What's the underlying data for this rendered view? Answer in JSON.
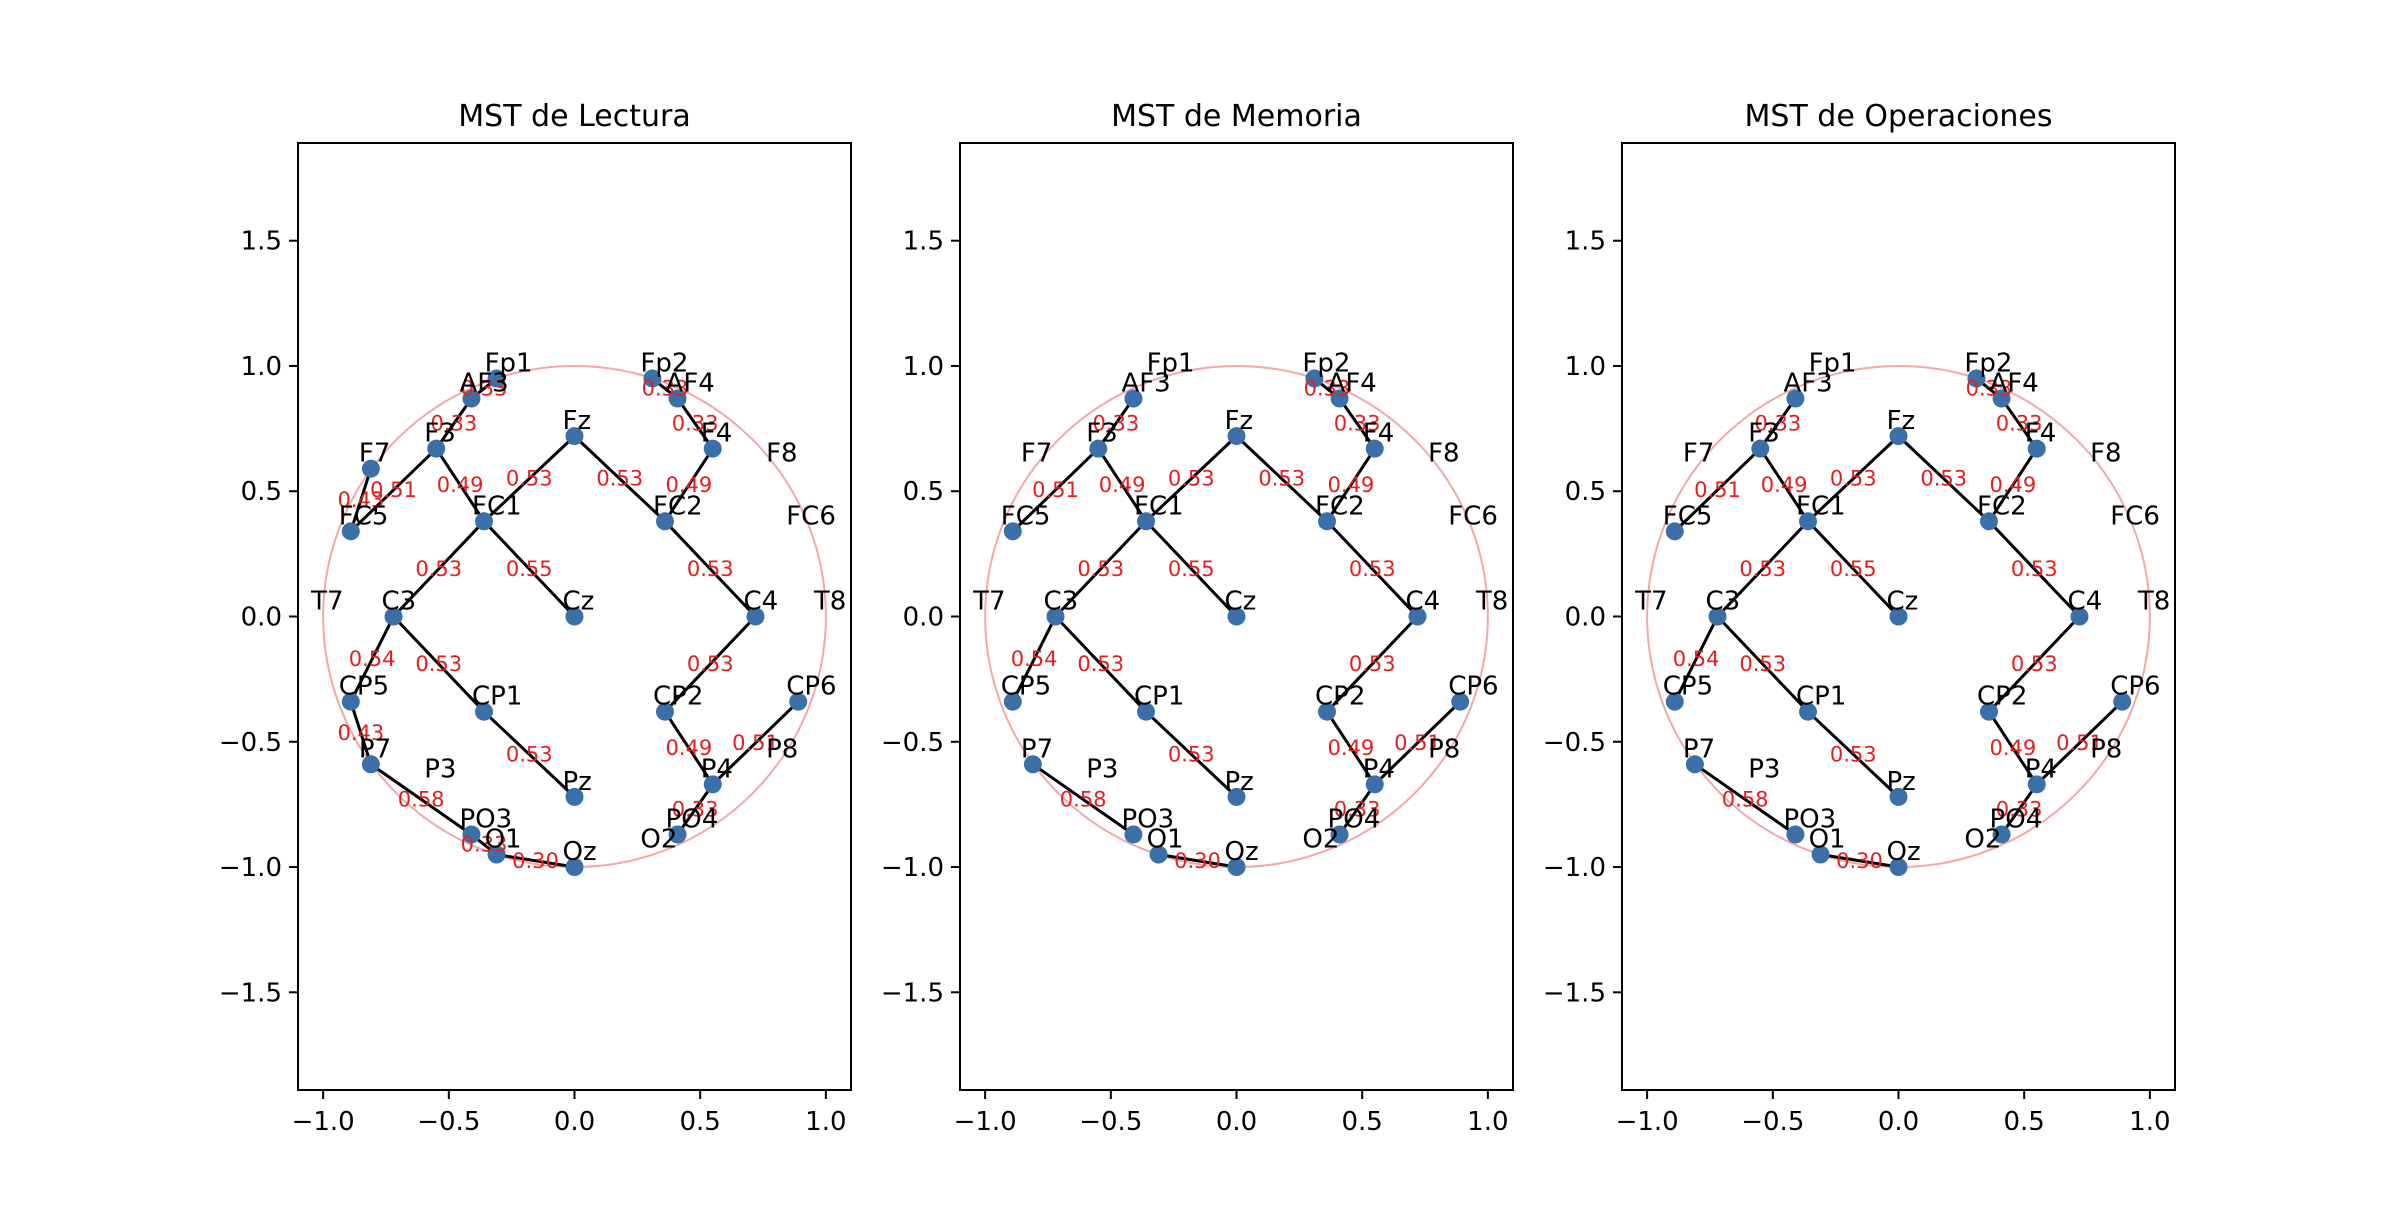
{
  "chart_data": [
    {
      "type": "network",
      "title": "MST de Lectura",
      "xlim": [
        -1.1,
        1.1
      ],
      "ylim": [
        -1.89,
        1.89
      ],
      "x_ticks": [
        -1.0,
        -0.5,
        0.0,
        0.5,
        1.0
      ],
      "y_ticks": [
        1.5,
        1.0,
        0.5,
        0.0,
        -0.5,
        -1.0,
        -1.5
      ],
      "x_tick_labels": [
        "−1.0",
        "−0.5",
        "0.0",
        "0.5",
        "1.0"
      ],
      "y_tick_labels": [
        "1.5",
        "1.0",
        "0.5",
        "0.0",
        "−0.5",
        "−1.0",
        "−1.5"
      ],
      "grid": false,
      "head_circle": {
        "center": [
          0,
          0
        ],
        "radius": 1.0
      },
      "nodes": [
        {
          "name": "Fp1",
          "x": -0.31,
          "y": 0.95
        },
        {
          "name": "Fp2",
          "x": 0.31,
          "y": 0.95
        },
        {
          "name": "AF3",
          "x": -0.41,
          "y": 0.87
        },
        {
          "name": "AF4",
          "x": 0.41,
          "y": 0.87
        },
        {
          "name": "F7",
          "x": -0.81,
          "y": 0.59
        },
        {
          "name": "F3",
          "x": -0.55,
          "y": 0.67
        },
        {
          "name": "Fz",
          "x": 0.0,
          "y": 0.72
        },
        {
          "name": "F4",
          "x": 0.55,
          "y": 0.67
        },
        {
          "name": "F8",
          "x": 0.81,
          "y": 0.59
        },
        {
          "name": "FC5",
          "x": -0.89,
          "y": 0.34
        },
        {
          "name": "FC1",
          "x": -0.36,
          "y": 0.38
        },
        {
          "name": "FC2",
          "x": 0.36,
          "y": 0.38
        },
        {
          "name": "FC6",
          "x": 0.89,
          "y": 0.34
        },
        {
          "name": "T7",
          "x": -1.0,
          "y": 0.0
        },
        {
          "name": "C3",
          "x": -0.72,
          "y": 0.0
        },
        {
          "name": "Cz",
          "x": 0.0,
          "y": 0.0
        },
        {
          "name": "C4",
          "x": 0.72,
          "y": 0.0
        },
        {
          "name": "T8",
          "x": 1.0,
          "y": 0.0
        },
        {
          "name": "CP5",
          "x": -0.89,
          "y": -0.34
        },
        {
          "name": "CP1",
          "x": -0.36,
          "y": -0.38
        },
        {
          "name": "CP2",
          "x": 0.36,
          "y": -0.38
        },
        {
          "name": "CP6",
          "x": 0.89,
          "y": -0.34
        },
        {
          "name": "P7",
          "x": -0.81,
          "y": -0.59
        },
        {
          "name": "P3",
          "x": -0.55,
          "y": -0.67
        },
        {
          "name": "Pz",
          "x": 0.0,
          "y": -0.72
        },
        {
          "name": "P4",
          "x": 0.55,
          "y": -0.67
        },
        {
          "name": "P8",
          "x": 0.81,
          "y": -0.59
        },
        {
          "name": "PO3",
          "x": -0.41,
          "y": -0.87
        },
        {
          "name": "PO4",
          "x": 0.41,
          "y": -0.87
        },
        {
          "name": "O1",
          "x": -0.31,
          "y": -0.95
        },
        {
          "name": "Oz",
          "x": 0.0,
          "y": -1.0
        },
        {
          "name": "O2",
          "x": 0.31,
          "y": -0.95
        }
      ],
      "edges": [
        {
          "from": "Fp1",
          "to": "AF3",
          "weight": "0.33"
        },
        {
          "from": "AF3",
          "to": "F3",
          "weight": "0.33"
        },
        {
          "from": "F7",
          "to": "FC5",
          "weight": "0.43"
        },
        {
          "from": "FC5",
          "to": "F3",
          "weight": "0.51"
        },
        {
          "from": "F3",
          "to": "FC1",
          "weight": "0.49"
        },
        {
          "from": "FC1",
          "to": "Fz",
          "weight": "0.53"
        },
        {
          "from": "Fz",
          "to": "FC2",
          "weight": "0.53"
        },
        {
          "from": "FC1",
          "to": "Cz",
          "weight": "0.55"
        },
        {
          "from": "FC1",
          "to": "C3",
          "weight": "0.53"
        },
        {
          "from": "C3",
          "to": "CP5",
          "weight": "0.54"
        },
        {
          "from": "C3",
          "to": "CP1",
          "weight": "0.53"
        },
        {
          "from": "CP1",
          "to": "Pz",
          "weight": "0.53"
        },
        {
          "from": "CP5",
          "to": "P7",
          "weight": "0.43"
        },
        {
          "from": "P7",
          "to": "PO3",
          "weight": "0.58"
        },
        {
          "from": "PO3",
          "to": "O1",
          "weight": "0.33"
        },
        {
          "from": "O1",
          "to": "Oz",
          "weight": "0.30"
        },
        {
          "from": "Fp2",
          "to": "AF4",
          "weight": "0.33"
        },
        {
          "from": "AF4",
          "to": "F4",
          "weight": "0.33"
        },
        {
          "from": "F4",
          "to": "FC2",
          "weight": "0.49"
        },
        {
          "from": "FC2",
          "to": "C4",
          "weight": "0.53"
        },
        {
          "from": "C4",
          "to": "CP2",
          "weight": "0.53"
        },
        {
          "from": "CP2",
          "to": "P4",
          "weight": "0.49"
        },
        {
          "from": "P4",
          "to": "CP6",
          "weight": "0.51"
        },
        {
          "from": "P4",
          "to": "PO4",
          "weight": "0.33"
        }
      ]
    },
    {
      "type": "network",
      "title": "MST de Memoria",
      "xlim": [
        -1.1,
        1.1
      ],
      "ylim": [
        -1.89,
        1.89
      ],
      "x_ticks": [
        -1.0,
        -0.5,
        0.0,
        0.5,
        1.0
      ],
      "y_ticks": [
        1.5,
        1.0,
        0.5,
        0.0,
        -0.5,
        -1.0,
        -1.5
      ],
      "x_tick_labels": [
        "−1.0",
        "−0.5",
        "0.0",
        "0.5",
        "1.0"
      ],
      "y_tick_labels": [
        "1.5",
        "1.0",
        "0.5",
        "0.0",
        "−0.5",
        "−1.0",
        "−1.5"
      ],
      "grid": false,
      "head_circle": {
        "center": [
          0,
          0
        ],
        "radius": 1.0
      },
      "nodes": [
        {
          "name": "Fp1",
          "x": -0.31,
          "y": 0.95
        },
        {
          "name": "Fp2",
          "x": 0.31,
          "y": 0.95
        },
        {
          "name": "AF3",
          "x": -0.41,
          "y": 0.87
        },
        {
          "name": "AF4",
          "x": 0.41,
          "y": 0.87
        },
        {
          "name": "F7",
          "x": -0.81,
          "y": 0.59
        },
        {
          "name": "F3",
          "x": -0.55,
          "y": 0.67
        },
        {
          "name": "Fz",
          "x": 0.0,
          "y": 0.72
        },
        {
          "name": "F4",
          "x": 0.55,
          "y": 0.67
        },
        {
          "name": "F8",
          "x": 0.81,
          "y": 0.59
        },
        {
          "name": "FC5",
          "x": -0.89,
          "y": 0.34
        },
        {
          "name": "FC1",
          "x": -0.36,
          "y": 0.38
        },
        {
          "name": "FC2",
          "x": 0.36,
          "y": 0.38
        },
        {
          "name": "FC6",
          "x": 0.89,
          "y": 0.34
        },
        {
          "name": "T7",
          "x": -1.0,
          "y": 0.0
        },
        {
          "name": "C3",
          "x": -0.72,
          "y": 0.0
        },
        {
          "name": "Cz",
          "x": 0.0,
          "y": 0.0
        },
        {
          "name": "C4",
          "x": 0.72,
          "y": 0.0
        },
        {
          "name": "T8",
          "x": 1.0,
          "y": 0.0
        },
        {
          "name": "CP5",
          "x": -0.89,
          "y": -0.34
        },
        {
          "name": "CP1",
          "x": -0.36,
          "y": -0.38
        },
        {
          "name": "CP2",
          "x": 0.36,
          "y": -0.38
        },
        {
          "name": "CP6",
          "x": 0.89,
          "y": -0.34
        },
        {
          "name": "P7",
          "x": -0.81,
          "y": -0.59
        },
        {
          "name": "P3",
          "x": -0.55,
          "y": -0.67
        },
        {
          "name": "Pz",
          "x": 0.0,
          "y": -0.72
        },
        {
          "name": "P4",
          "x": 0.55,
          "y": -0.67
        },
        {
          "name": "P8",
          "x": 0.81,
          "y": -0.59
        },
        {
          "name": "PO3",
          "x": -0.41,
          "y": -0.87
        },
        {
          "name": "PO4",
          "x": 0.41,
          "y": -0.87
        },
        {
          "name": "O1",
          "x": -0.31,
          "y": -0.95
        },
        {
          "name": "Oz",
          "x": 0.0,
          "y": -1.0
        },
        {
          "name": "O2",
          "x": 0.31,
          "y": -0.95
        }
      ],
      "edges": [
        {
          "from": "AF3",
          "to": "F3",
          "weight": "0.33"
        },
        {
          "from": "F3",
          "to": "FC5",
          "weight": "0.51"
        },
        {
          "from": "F3",
          "to": "FC1",
          "weight": "0.49"
        },
        {
          "from": "FC1",
          "to": "Fz",
          "weight": "0.53"
        },
        {
          "from": "Fz",
          "to": "FC2",
          "weight": "0.53"
        },
        {
          "from": "FC1",
          "to": "Cz",
          "weight": "0.55"
        },
        {
          "from": "FC1",
          "to": "C3",
          "weight": "0.53"
        },
        {
          "from": "C3",
          "to": "CP5",
          "weight": "0.54"
        },
        {
          "from": "C3",
          "to": "CP1",
          "weight": "0.53"
        },
        {
          "from": "CP1",
          "to": "Pz",
          "weight": "0.53"
        },
        {
          "from": "P7",
          "to": "PO3",
          "weight": "0.58"
        },
        {
          "from": "O1",
          "to": "Oz",
          "weight": "0.30"
        },
        {
          "from": "Fp2",
          "to": "AF4",
          "weight": "0.33"
        },
        {
          "from": "AF4",
          "to": "F4",
          "weight": "0.33"
        },
        {
          "from": "F4",
          "to": "FC2",
          "weight": "0.49"
        },
        {
          "from": "FC2",
          "to": "C4",
          "weight": "0.53"
        },
        {
          "from": "C4",
          "to": "CP2",
          "weight": "0.53"
        },
        {
          "from": "CP2",
          "to": "P4",
          "weight": "0.49"
        },
        {
          "from": "P4",
          "to": "CP6",
          "weight": "0.51"
        },
        {
          "from": "P4",
          "to": "PO4",
          "weight": "0.33"
        }
      ]
    },
    {
      "type": "network",
      "title": "MST de Operaciones",
      "xlim": [
        -1.1,
        1.1
      ],
      "ylim": [
        -1.89,
        1.89
      ],
      "x_ticks": [
        -1.0,
        -0.5,
        0.0,
        0.5,
        1.0
      ],
      "y_ticks": [
        1.5,
        1.0,
        0.5,
        0.0,
        -0.5,
        -1.0,
        -1.5
      ],
      "x_tick_labels": [
        "−1.0",
        "−0.5",
        "0.0",
        "0.5",
        "1.0"
      ],
      "y_tick_labels": [
        "1.5",
        "1.0",
        "0.5",
        "0.0",
        "−0.5",
        "−1.0",
        "−1.5"
      ],
      "grid": false,
      "head_circle": {
        "center": [
          0,
          0
        ],
        "radius": 1.0
      },
      "nodes": [
        {
          "name": "Fp1",
          "x": -0.31,
          "y": 0.95
        },
        {
          "name": "Fp2",
          "x": 0.31,
          "y": 0.95
        },
        {
          "name": "AF3",
          "x": -0.41,
          "y": 0.87
        },
        {
          "name": "AF4",
          "x": 0.41,
          "y": 0.87
        },
        {
          "name": "F7",
          "x": -0.81,
          "y": 0.59
        },
        {
          "name": "F3",
          "x": -0.55,
          "y": 0.67
        },
        {
          "name": "Fz",
          "x": 0.0,
          "y": 0.72
        },
        {
          "name": "F4",
          "x": 0.55,
          "y": 0.67
        },
        {
          "name": "F8",
          "x": 0.81,
          "y": 0.59
        },
        {
          "name": "FC5",
          "x": -0.89,
          "y": 0.34
        },
        {
          "name": "FC1",
          "x": -0.36,
          "y": 0.38
        },
        {
          "name": "FC2",
          "x": 0.36,
          "y": 0.38
        },
        {
          "name": "FC6",
          "x": 0.89,
          "y": 0.34
        },
        {
          "name": "T7",
          "x": -1.0,
          "y": 0.0
        },
        {
          "name": "C3",
          "x": -0.72,
          "y": 0.0
        },
        {
          "name": "Cz",
          "x": 0.0,
          "y": 0.0
        },
        {
          "name": "C4",
          "x": 0.72,
          "y": 0.0
        },
        {
          "name": "T8",
          "x": 1.0,
          "y": 0.0
        },
        {
          "name": "CP5",
          "x": -0.89,
          "y": -0.34
        },
        {
          "name": "CP1",
          "x": -0.36,
          "y": -0.38
        },
        {
          "name": "CP2",
          "x": 0.36,
          "y": -0.38
        },
        {
          "name": "CP6",
          "x": 0.89,
          "y": -0.34
        },
        {
          "name": "P7",
          "x": -0.81,
          "y": -0.59
        },
        {
          "name": "P3",
          "x": -0.55,
          "y": -0.67
        },
        {
          "name": "Pz",
          "x": 0.0,
          "y": -0.72
        },
        {
          "name": "P4",
          "x": 0.55,
          "y": -0.67
        },
        {
          "name": "P8",
          "x": 0.81,
          "y": -0.59
        },
        {
          "name": "PO3",
          "x": -0.41,
          "y": -0.87
        },
        {
          "name": "PO4",
          "x": 0.41,
          "y": -0.87
        },
        {
          "name": "O1",
          "x": -0.31,
          "y": -0.95
        },
        {
          "name": "Oz",
          "x": 0.0,
          "y": -1.0
        },
        {
          "name": "O2",
          "x": 0.31,
          "y": -0.95
        }
      ],
      "edges": [
        {
          "from": "AF3",
          "to": "F3",
          "weight": "0.33"
        },
        {
          "from": "FC5",
          "to": "F3",
          "weight": "0.51"
        },
        {
          "from": "F3",
          "to": "FC1",
          "weight": "0.49"
        },
        {
          "from": "FC1",
          "to": "Fz",
          "weight": "0.53"
        },
        {
          "from": "Fz",
          "to": "FC2",
          "weight": "0.53"
        },
        {
          "from": "FC1",
          "to": "Cz",
          "weight": "0.55"
        },
        {
          "from": "FC1",
          "to": "C3",
          "weight": "0.53"
        },
        {
          "from": "C3",
          "to": "CP5",
          "weight": "0.54"
        },
        {
          "from": "C3",
          "to": "CP1",
          "weight": "0.53"
        },
        {
          "from": "CP1",
          "to": "Pz",
          "weight": "0.53"
        },
        {
          "from": "P7",
          "to": "PO3",
          "weight": "0.58"
        },
        {
          "from": "O1",
          "to": "Oz",
          "weight": "0.30"
        },
        {
          "from": "Fp2",
          "to": "AF4",
          "weight": "0.33"
        },
        {
          "from": "AF4",
          "to": "F4",
          "weight": "0.33"
        },
        {
          "from": "F4",
          "to": "FC2",
          "weight": "0.49"
        },
        {
          "from": "FC2",
          "to": "C4",
          "weight": "0.53"
        },
        {
          "from": "C4",
          "to": "CP2",
          "weight": "0.53"
        },
        {
          "from": "CP2",
          "to": "P4",
          "weight": "0.49"
        },
        {
          "from": "P4",
          "to": "CP6",
          "weight": "0.51"
        },
        {
          "from": "P4",
          "to": "PO4",
          "weight": "0.33"
        }
      ]
    }
  ],
  "colors": {
    "node": "#3a6fa8",
    "edge": "#000000",
    "weight_label": "#e32020",
    "head_circle": "#f0a8a8",
    "axes": "#000000"
  }
}
